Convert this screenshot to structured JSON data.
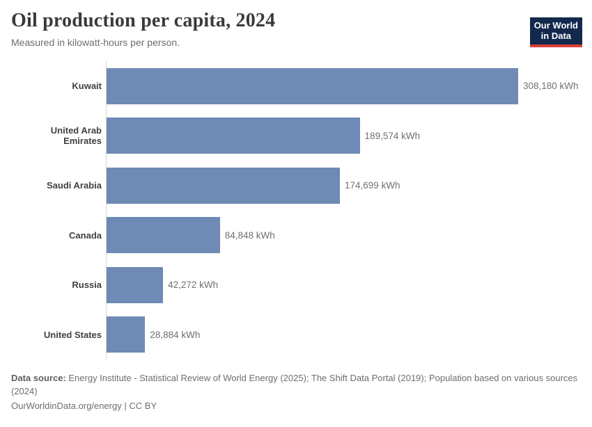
{
  "header": {
    "title": "Oil production per capita, 2024",
    "subtitle": "Measured in kilowatt-hours per person."
  },
  "logo": {
    "line1": "Our World",
    "line2": "in Data"
  },
  "chart_data": {
    "type": "bar",
    "orientation": "horizontal",
    "title": "Oil production per capita, 2024",
    "subtitle": "Measured in kilowatt-hours per person.",
    "categories": [
      "Kuwait",
      "United Arab Emirates",
      "Saudi Arabia",
      "Canada",
      "Russia",
      "United States"
    ],
    "values": [
      308180,
      189574,
      174699,
      84848,
      42272,
      28884
    ],
    "value_labels": [
      "308,180 kWh",
      "189,574 kWh",
      "174,699 kWh",
      "84,848 kWh",
      "42,272 kWh",
      "28,884 kWh"
    ],
    "unit": "kWh",
    "xlim": [
      0,
      308180
    ],
    "grid": false,
    "legend": "none"
  },
  "colors": {
    "bar": "#6e8ab5",
    "axis_line": "#d6d6d6",
    "logo_navy": "#12294d",
    "logo_red": "#dc3e34"
  },
  "footer": {
    "datasource_label": "Data source:",
    "datasource_text": "Energy Institute - Statistical Review of World Energy (2025); The Shift Data Portal (2019); Population based on various sources",
    "datasource_wrap": "(2024)",
    "link_line": "OurWorldinData.org/energy | CC BY"
  }
}
